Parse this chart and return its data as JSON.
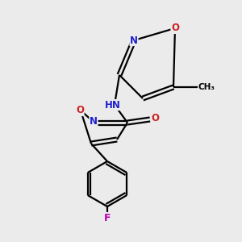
{
  "bg_color": "#ebebeb",
  "atom_colors": {
    "C": "#000000",
    "N": "#2020cc",
    "O": "#cc2020",
    "F": "#bb00bb",
    "H": "#888888"
  },
  "bond_color": "#000000",
  "lw": 1.6
}
